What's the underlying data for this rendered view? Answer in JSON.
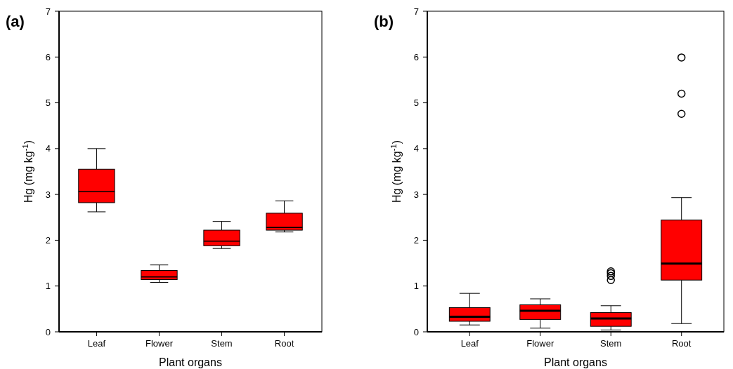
{
  "chart_data": [
    {
      "type": "box",
      "title": "(a)",
      "xlabel": "Plant organs",
      "ylabel": "Hg (mg kg$^{-1}$)",
      "categories": [
        "Leaf",
        "Flower",
        "Stem",
        "Root"
      ],
      "color": "#ff0000",
      "ylim": [
        0,
        7
      ],
      "yticks": [
        0,
        1,
        2,
        3,
        4,
        5,
        6,
        7
      ],
      "grid": false,
      "boxes": [
        {
          "low": 2.62,
          "q1": 2.82,
          "median": 3.06,
          "q3": 3.55,
          "high": 4.0
        },
        {
          "low": 1.08,
          "q1": 1.14,
          "median": 1.2,
          "q3": 1.34,
          "high": 1.46
        },
        {
          "low": 1.82,
          "q1": 1.88,
          "median": 1.98,
          "q3": 2.22,
          "high": 2.41
        },
        {
          "low": 2.18,
          "q1": 2.22,
          "median": 2.28,
          "q3": 2.59,
          "high": 2.86
        }
      ]
    },
    {
      "type": "box",
      "title": "(b)",
      "xlabel": "Plant organs",
      "ylabel": "Hg (mg kg$^{-1}$)",
      "categories": [
        "Leaf",
        "Flower",
        "Stem",
        "Root"
      ],
      "color": "#ff0000",
      "ylim": [
        0,
        7
      ],
      "yticks": [
        0,
        1,
        2,
        3,
        4,
        5,
        6,
        7
      ],
      "grid": false,
      "boxes": [
        {
          "low": 0.15,
          "q1": 0.23,
          "median": 0.33,
          "q3": 0.53,
          "high": 0.84
        },
        {
          "low": 0.08,
          "q1": 0.27,
          "median": 0.46,
          "q3": 0.59,
          "high": 0.72
        },
        {
          "low": 0.04,
          "q1": 0.12,
          "median": 0.29,
          "q3": 0.42,
          "high": 0.57,
          "outliers": [
            1.13,
            1.22,
            1.28,
            1.32
          ]
        },
        {
          "low": 0.18,
          "q1": 1.13,
          "median": 1.49,
          "q3": 2.44,
          "high": 2.93,
          "outliers": [
            4.76,
            5.2,
            5.99
          ]
        }
      ]
    }
  ]
}
